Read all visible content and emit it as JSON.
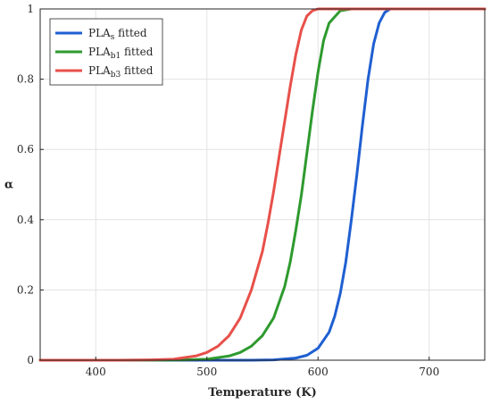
{
  "chart_data": {
    "type": "line",
    "xlabel": "Temperature (K)",
    "ylabel": "α",
    "xlim": [
      350,
      750
    ],
    "ylim": [
      0,
      1
    ],
    "x_ticks": [
      "400",
      "500",
      "600",
      "700"
    ],
    "y_ticks": [
      "0",
      "0.2",
      "0.4",
      "0.6",
      "0.8",
      "1"
    ],
    "grid": true,
    "legend_position": "top-left",
    "series": [
      {
        "name": "PLAs fitted",
        "legend_main": "PLA",
        "legend_sub": "s",
        "legend_suffix": " fitted",
        "color": "#1f5fd1",
        "x": [
          350,
          500,
          540,
          560,
          580,
          590,
          600,
          610,
          615,
          620,
          625,
          630,
          635,
          640,
          645,
          650,
          655,
          660,
          665,
          670,
          700,
          750
        ],
        "y": [
          0,
          0,
          0,
          0.001,
          0.006,
          0.014,
          0.034,
          0.08,
          0.125,
          0.19,
          0.28,
          0.4,
          0.53,
          0.67,
          0.8,
          0.9,
          0.96,
          0.99,
          1.0,
          1.0,
          1.0,
          1.0
        ]
      },
      {
        "name": "PLAb1 fitted",
        "legend_main": "PLA",
        "legend_sub": "b1",
        "legend_suffix": " fitted",
        "color": "#2e9a2e",
        "x": [
          350,
          450,
          480,
          500,
          520,
          530,
          540,
          550,
          560,
          570,
          575,
          580,
          585,
          590,
          595,
          600,
          605,
          610,
          620,
          630,
          650,
          750
        ],
        "y": [
          0,
          0,
          0.001,
          0.003,
          0.012,
          0.022,
          0.04,
          0.07,
          0.12,
          0.21,
          0.28,
          0.37,
          0.47,
          0.59,
          0.71,
          0.82,
          0.91,
          0.96,
          0.995,
          1.0,
          1.0,
          1.0
        ]
      },
      {
        "name": "PLAb3 fitted",
        "legend_main": "PLA",
        "legend_sub": "b3",
        "legend_suffix": " fitted",
        "color": "#e8504a",
        "x": [
          350,
          420,
          450,
          470,
          490,
          500,
          510,
          520,
          530,
          540,
          550,
          555,
          560,
          565,
          570,
          575,
          580,
          585,
          590,
          595,
          600,
          610,
          750
        ],
        "y": [
          0,
          0,
          0.001,
          0.003,
          0.012,
          0.022,
          0.04,
          0.07,
          0.12,
          0.2,
          0.31,
          0.39,
          0.48,
          0.58,
          0.68,
          0.78,
          0.87,
          0.94,
          0.98,
          0.995,
          1.0,
          1.0,
          1.0
        ]
      }
    ]
  }
}
